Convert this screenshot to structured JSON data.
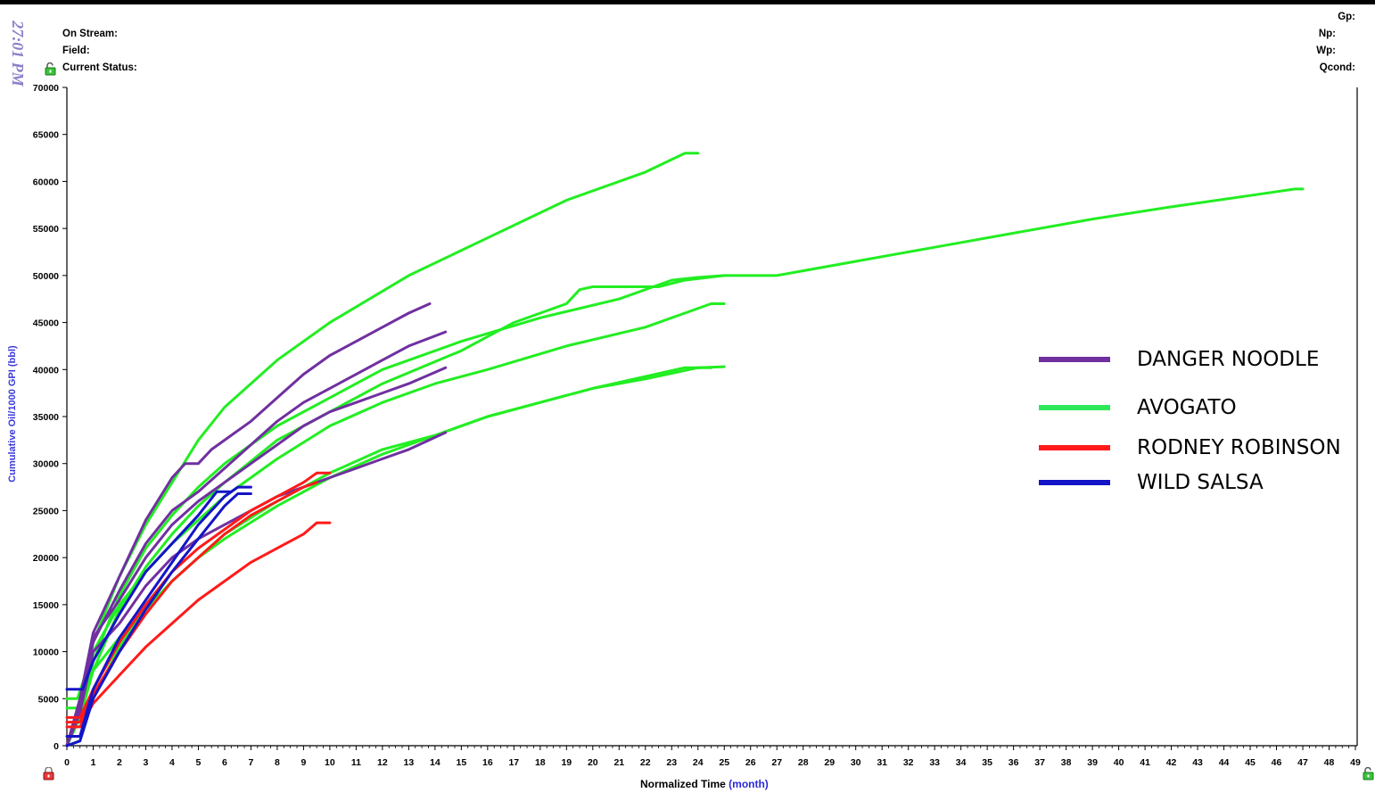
{
  "header": {
    "timestamp": "27:01 PM",
    "left": [
      "On Stream:",
      "Field:",
      "Current Status:"
    ],
    "right": [
      "Gp:",
      "Np:",
      "Wp:",
      "Qcond:"
    ]
  },
  "icons": {
    "lock_top": "unlock-icon",
    "lock_bottom": "lock-icon",
    "lock_right": "unlock-icon"
  },
  "chart_data": {
    "type": "line",
    "xlabel": "Normalized Time",
    "xlabel_unit": "(month)",
    "ylabel": "Cumulative Oil/1000 GPI (bbl)",
    "xlim": [
      0,
      49
    ],
    "ylim": [
      0,
      70000
    ],
    "x_ticks": [
      0,
      1,
      2,
      3,
      4,
      5,
      6,
      7,
      8,
      9,
      10,
      11,
      12,
      13,
      14,
      15,
      16,
      17,
      18,
      19,
      20,
      21,
      22,
      23,
      24,
      25,
      26,
      27,
      28,
      29,
      30,
      31,
      32,
      33,
      34,
      35,
      36,
      37,
      38,
      39,
      40,
      41,
      42,
      43,
      44,
      45,
      46,
      47,
      48,
      49
    ],
    "y_ticks": [
      0,
      5000,
      10000,
      15000,
      20000,
      25000,
      30000,
      35000,
      40000,
      45000,
      50000,
      55000,
      60000,
      65000,
      70000
    ],
    "grid": false,
    "legend_position": "right",
    "legend": [
      {
        "name": "DANGER NOODLE",
        "color": "#7030a0"
      },
      {
        "name": "AVOGATO",
        "color": "#2ee85a"
      },
      {
        "name": "RODNEY ROBINSON",
        "color": "#ff1a1a"
      },
      {
        "name": "WILD SALSA",
        "color": "#1414c8"
      }
    ],
    "series": [
      {
        "group": "AVOGATO",
        "color": "#22ee22",
        "points": [
          [
            0,
            0
          ],
          [
            0.5,
            4000
          ],
          [
            1,
            11000
          ],
          [
            2,
            18000
          ],
          [
            3,
            23500
          ],
          [
            4,
            28000
          ],
          [
            5,
            32500
          ],
          [
            6,
            36000
          ],
          [
            8,
            41000
          ],
          [
            10,
            45000
          ],
          [
            13,
            50000
          ],
          [
            16,
            54000
          ],
          [
            19,
            58000
          ],
          [
            22,
            61000
          ],
          [
            23.5,
            63000
          ],
          [
            24,
            63000
          ]
        ]
      },
      {
        "group": "AVOGATO",
        "color": "#22ee22",
        "points": [
          [
            0,
            0
          ],
          [
            0.5,
            3000
          ],
          [
            1,
            9000
          ],
          [
            2,
            16000
          ],
          [
            3,
            21000
          ],
          [
            4,
            24500
          ],
          [
            5,
            27500
          ],
          [
            6,
            30000
          ],
          [
            8,
            34000
          ],
          [
            10,
            37000
          ],
          [
            12,
            40000
          ],
          [
            15,
            43000
          ],
          [
            18,
            45500
          ],
          [
            21,
            47500
          ],
          [
            23,
            49500
          ],
          [
            24,
            49800
          ],
          [
            25,
            50000
          ],
          [
            27,
            50000
          ],
          [
            30,
            51500
          ],
          [
            33,
            53000
          ],
          [
            36,
            54500
          ],
          [
            39,
            56000
          ],
          [
            42,
            57300
          ],
          [
            45,
            58500
          ],
          [
            46.7,
            59200
          ],
          [
            47,
            59200
          ]
        ]
      },
      {
        "group": "AVOGATO",
        "color": "#22ee22",
        "points": [
          [
            0,
            0
          ],
          [
            0.5,
            3000
          ],
          [
            1,
            8000
          ],
          [
            2,
            14500
          ],
          [
            3,
            19000
          ],
          [
            4,
            22500
          ],
          [
            5,
            25500
          ],
          [
            6,
            28000
          ],
          [
            8,
            32500
          ],
          [
            10,
            35500
          ],
          [
            12,
            38500
          ],
          [
            15,
            42000
          ],
          [
            17,
            45000
          ],
          [
            19,
            47000
          ],
          [
            19.5,
            48500
          ],
          [
            20,
            48800
          ],
          [
            22.5,
            48800
          ],
          [
            23.5,
            49500
          ],
          [
            25,
            50000
          ]
        ]
      },
      {
        "group": "AVOGATO",
        "color": "#22ee22",
        "points": [
          [
            0,
            5000
          ],
          [
            0.4,
            5000
          ],
          [
            1,
            10000
          ],
          [
            2,
            15000
          ],
          [
            3,
            18500
          ],
          [
            4,
            21500
          ],
          [
            5,
            24000
          ],
          [
            6,
            26500
          ],
          [
            8,
            30500
          ],
          [
            10,
            34000
          ],
          [
            12,
            36500
          ],
          [
            14,
            38500
          ],
          [
            16,
            40000
          ],
          [
            19,
            42500
          ],
          [
            22,
            44500
          ],
          [
            24.5,
            47000
          ],
          [
            25,
            47000
          ]
        ]
      },
      {
        "group": "AVOGATO",
        "color": "#22ee22",
        "points": [
          [
            0,
            4000
          ],
          [
            0.4,
            4000
          ],
          [
            1,
            8000
          ],
          [
            2,
            11500
          ],
          [
            3,
            14500
          ],
          [
            4,
            17500
          ],
          [
            5,
            20000
          ],
          [
            6,
            22500
          ],
          [
            8,
            26000
          ],
          [
            10,
            29000
          ],
          [
            12,
            31500
          ],
          [
            14,
            33000
          ],
          [
            16,
            35000
          ],
          [
            18,
            36500
          ],
          [
            20,
            38000
          ],
          [
            23.5,
            40200
          ],
          [
            24.5,
            40200
          ]
        ]
      },
      {
        "group": "AVOGATO",
        "color": "#22ee22",
        "points": [
          [
            0,
            0
          ],
          [
            0.5,
            500
          ],
          [
            1,
            5000
          ],
          [
            2,
            10500
          ],
          [
            3,
            14500
          ],
          [
            4,
            17500
          ],
          [
            5,
            20000
          ],
          [
            6,
            22000
          ],
          [
            8,
            25500
          ],
          [
            10,
            28500
          ],
          [
            12,
            31000
          ],
          [
            14,
            33000
          ],
          [
            16,
            35000
          ],
          [
            18,
            36500
          ],
          [
            20,
            38000
          ],
          [
            22,
            39000
          ],
          [
            24,
            40200
          ],
          [
            25,
            40300
          ]
        ]
      },
      {
        "group": "DANGER NOODLE",
        "color": "#7030a0",
        "points": [
          [
            0,
            0
          ],
          [
            0.5,
            5000
          ],
          [
            1,
            12000
          ],
          [
            2,
            18000
          ],
          [
            3,
            24000
          ],
          [
            4,
            28500
          ],
          [
            4.5,
            30000
          ],
          [
            5,
            30000
          ],
          [
            5.5,
            31500
          ],
          [
            6,
            32500
          ],
          [
            7,
            34500
          ],
          [
            8,
            37000
          ],
          [
            9,
            39500
          ],
          [
            10,
            41500
          ],
          [
            11,
            43000
          ],
          [
            12,
            44500
          ],
          [
            13,
            46000
          ],
          [
            13.8,
            47000
          ]
        ]
      },
      {
        "group": "DANGER NOODLE",
        "color": "#7030a0",
        "points": [
          [
            0,
            0
          ],
          [
            0.5,
            4500
          ],
          [
            1,
            11000
          ],
          [
            2,
            16500
          ],
          [
            3,
            21500
          ],
          [
            4,
            25000
          ],
          [
            5,
            27000
          ],
          [
            6,
            29500
          ],
          [
            7,
            32000
          ],
          [
            8,
            34500
          ],
          [
            9,
            36500
          ],
          [
            10,
            38000
          ],
          [
            11,
            39500
          ],
          [
            12,
            41000
          ],
          [
            13,
            42500
          ],
          [
            14.4,
            44000
          ]
        ]
      },
      {
        "group": "DANGER NOODLE",
        "color": "#7030a0",
        "points": [
          [
            0,
            0
          ],
          [
            0.5,
            4000
          ],
          [
            1,
            11500
          ],
          [
            2,
            15500
          ],
          [
            3,
            20000
          ],
          [
            4,
            23500
          ],
          [
            5,
            26000
          ],
          [
            6,
            28000
          ],
          [
            7,
            30000
          ],
          [
            8,
            32000
          ],
          [
            9,
            34000
          ],
          [
            10,
            35500
          ],
          [
            11,
            36500
          ],
          [
            12,
            37500
          ],
          [
            13,
            38500
          ],
          [
            14.4,
            40200
          ]
        ]
      },
      {
        "group": "DANGER NOODLE",
        "color": "#7030a0",
        "points": [
          [
            0,
            0
          ],
          [
            0.5,
            3500
          ],
          [
            1,
            10000
          ],
          [
            1.5,
            11500
          ],
          [
            2,
            13000
          ],
          [
            3,
            17000
          ],
          [
            4,
            20000
          ],
          [
            5,
            22000
          ],
          [
            6,
            23500
          ],
          [
            7,
            25000
          ],
          [
            8,
            26500
          ],
          [
            9,
            27500
          ],
          [
            10,
            28500
          ],
          [
            11,
            29500
          ],
          [
            12,
            30500
          ],
          [
            13,
            31500
          ],
          [
            14.4,
            33300
          ]
        ]
      },
      {
        "group": "RODNEY ROBINSON",
        "color": "#ff1a1a",
        "points": [
          [
            0,
            3000
          ],
          [
            0.5,
            3000
          ],
          [
            1,
            6000
          ],
          [
            2,
            11000
          ],
          [
            3,
            15000
          ],
          [
            4,
            18500
          ],
          [
            5,
            21000
          ],
          [
            6,
            23000
          ],
          [
            7,
            25000
          ],
          [
            8,
            26500
          ],
          [
            9,
            28000
          ],
          [
            9.5,
            29000
          ],
          [
            10,
            29000
          ]
        ]
      },
      {
        "group": "RODNEY ROBINSON",
        "color": "#ff1a1a",
        "points": [
          [
            0,
            2500
          ],
          [
            0.5,
            2500
          ],
          [
            1,
            5500
          ],
          [
            2,
            10000
          ],
          [
            3,
            14000
          ],
          [
            4,
            17500
          ],
          [
            5,
            20000
          ],
          [
            6,
            22500
          ],
          [
            7,
            24500
          ],
          [
            8,
            26000
          ],
          [
            9,
            27500
          ],
          [
            9.5,
            28000
          ]
        ]
      },
      {
        "group": "RODNEY ROBINSON",
        "color": "#ff1a1a",
        "points": [
          [
            0,
            2000
          ],
          [
            0.5,
            2000
          ],
          [
            1,
            4500
          ],
          [
            2,
            7500
          ],
          [
            3,
            10500
          ],
          [
            4,
            13000
          ],
          [
            5,
            15500
          ],
          [
            6,
            17500
          ],
          [
            7,
            19500
          ],
          [
            8,
            21000
          ],
          [
            9,
            22500
          ],
          [
            9.5,
            23700
          ],
          [
            10,
            23700
          ]
        ]
      },
      {
        "group": "WILD SALSA",
        "color": "#1414c8",
        "points": [
          [
            0,
            6000
          ],
          [
            0.6,
            6000
          ],
          [
            1,
            9000
          ],
          [
            2,
            14000
          ],
          [
            3,
            18500
          ],
          [
            4,
            21500
          ],
          [
            5,
            24500
          ],
          [
            5.7,
            27000
          ],
          [
            6.2,
            27000
          ]
        ]
      },
      {
        "group": "WILD SALSA",
        "color": "#1414c8",
        "points": [
          [
            0,
            1000
          ],
          [
            0.5,
            1000
          ],
          [
            1,
            6000
          ],
          [
            2,
            11500
          ],
          [
            3,
            15500
          ],
          [
            4,
            19500
          ],
          [
            5,
            23500
          ],
          [
            6,
            26500
          ],
          [
            6.5,
            27500
          ],
          [
            7,
            27500
          ]
        ]
      },
      {
        "group": "WILD SALSA",
        "color": "#1414c8",
        "points": [
          [
            0,
            0
          ],
          [
            0.5,
            500
          ],
          [
            1,
            5000
          ],
          [
            2,
            10000
          ],
          [
            3,
            14500
          ],
          [
            4,
            18500
          ],
          [
            5,
            22000
          ],
          [
            6,
            25500
          ],
          [
            6.5,
            26800
          ],
          [
            7,
            26800
          ]
        ]
      }
    ]
  }
}
